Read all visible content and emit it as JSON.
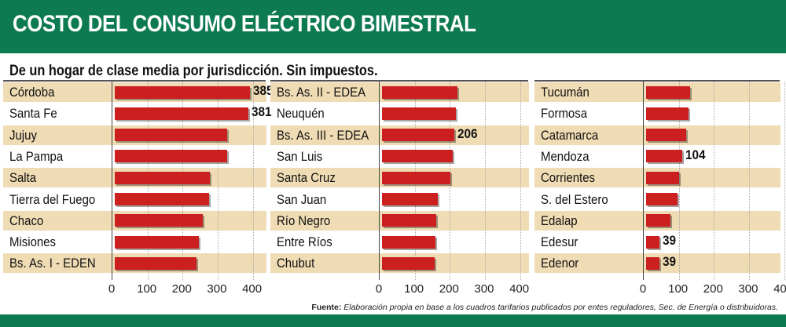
{
  "header": {
    "title": "COSTO DEL CONSUMO ELÉCTRICO BIMESTRAL"
  },
  "subtitle": "De un hogar de clase media por jurisdicción. Sin impuestos.",
  "source": {
    "label": "Fuente:",
    "text": "Elaboración propia en base a los cuadros tarifarios publicados por entes reguladores, Sec. de Energía o distribuidoras."
  },
  "colors": {
    "header": "#0d7a52",
    "bar": "#cc1f1f",
    "row_shade": "#efdcb4"
  },
  "chart_data": [
    {
      "type": "bar",
      "orientation": "horizontal",
      "categories": [
        "Córdoba",
        "Santa Fe",
        "Jujuy",
        "La Pampa",
        "Salta",
        "Tierra del Fuego",
        "Chaco",
        "Misiones",
        "Bs. As. I - EDEN"
      ],
      "values": [
        385,
        381,
        320,
        320,
        270,
        268,
        250,
        240,
        232
      ],
      "data_labels": [
        "385",
        "381",
        "",
        "",
        "",
        "",
        "",
        "",
        ""
      ],
      "xlim": [
        0,
        430
      ],
      "ticks": [
        "0",
        "100",
        "200",
        "300",
        "400"
      ],
      "grid": true
    },
    {
      "type": "bar",
      "orientation": "horizontal",
      "categories": [
        "Bs. As. II - EDEA",
        "Neuquén",
        "Bs. As. III - EDEA",
        "San Luis",
        "Santa Cruz",
        "San Juan",
        "Río Negro",
        "Entre Ríos",
        "Chubut"
      ],
      "values": [
        215,
        210,
        206,
        202,
        195,
        160,
        155,
        153,
        150
      ],
      "data_labels": [
        "",
        "",
        "206",
        "",
        "",
        "",
        "",
        "",
        ""
      ],
      "xlim": [
        0,
        430
      ],
      "ticks": [
        "0",
        "100",
        "200",
        "300",
        "400"
      ],
      "grid": true
    },
    {
      "type": "bar",
      "orientation": "horizontal",
      "categories": [
        "Tucumán",
        "Formosa",
        "Catamarca",
        "Mendoza",
        "Corrientes",
        "S. del Estero",
        "Edalap",
        "Edesur",
        "Edenor"
      ],
      "values": [
        125,
        122,
        115,
        104,
        95,
        90,
        70,
        39,
        39
      ],
      "data_labels": [
        "",
        "",
        "",
        "104",
        "",
        "",
        "",
        "39",
        "39"
      ],
      "xlim": [
        0,
        430
      ],
      "ticks": [
        "0",
        "100",
        "200",
        "300",
        "400"
      ],
      "grid": true
    }
  ]
}
